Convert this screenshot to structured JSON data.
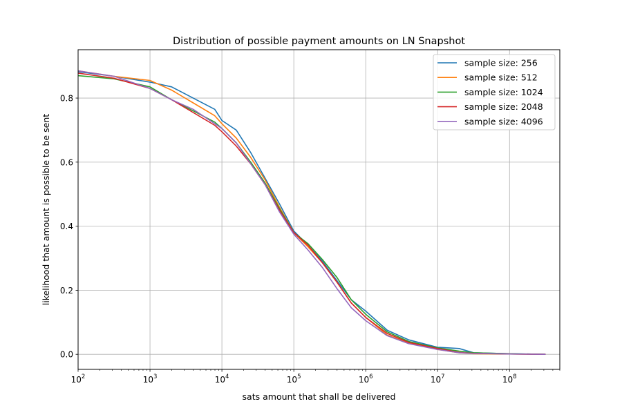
{
  "chart_data": {
    "type": "line",
    "title": "Distribution of possible payment amounts on LN Snapshot",
    "xlabel": "sats amount that shall be delivered",
    "ylabel": "likelihood that amount is possible to be sent",
    "xscale": "log",
    "xlim": [
      100,
      500000000
    ],
    "ylim": [
      -0.047,
      0.951
    ],
    "grid": true,
    "legend_position": "top-right",
    "x_tick_labels": [
      {
        "value": 100,
        "base": "10",
        "exp": "2"
      },
      {
        "value": 1000,
        "base": "10",
        "exp": "3"
      },
      {
        "value": 10000,
        "base": "10",
        "exp": "4"
      },
      {
        "value": 100000,
        "base": "10",
        "exp": "5"
      },
      {
        "value": 1000000,
        "base": "10",
        "exp": "6"
      },
      {
        "value": 10000000,
        "base": "10",
        "exp": "7"
      },
      {
        "value": 100000000,
        "base": "10",
        "exp": "8"
      }
    ],
    "y_ticks": [
      0.0,
      0.2,
      0.4,
      0.6,
      0.8
    ],
    "y_tick_labels": [
      "0.0",
      "0.2",
      "0.4",
      "0.6",
      "0.8"
    ],
    "x": [
      100,
      316,
      1000,
      1995,
      3981,
      7943,
      10000,
      15849,
      25119,
      39811,
      63096,
      100000,
      158489,
      251189,
      398107,
      630957,
      1000000,
      1995262,
      3981072,
      10000000,
      19952623,
      31622777,
      100000000,
      316227766
    ],
    "series": [
      {
        "name": "sample size: 256",
        "color": "#1f77b4",
        "values": [
          0.882,
          0.868,
          0.85,
          0.835,
          0.8,
          0.765,
          0.73,
          0.7,
          0.63,
          0.55,
          0.47,
          0.385,
          0.34,
          0.29,
          0.23,
          0.17,
          0.135,
          0.075,
          0.045,
          0.022,
          0.018,
          0.005,
          0.002,
          0.0
        ]
      },
      {
        "name": "sample size: 512",
        "color": "#ff7f0e",
        "values": [
          0.885,
          0.868,
          0.855,
          0.825,
          0.785,
          0.745,
          0.72,
          0.675,
          0.615,
          0.545,
          0.46,
          0.38,
          0.335,
          0.285,
          0.225,
          0.16,
          0.115,
          0.06,
          0.035,
          0.015,
          0.005,
          0.002,
          0.001,
          0.0
        ]
      },
      {
        "name": "sample size: 1024",
        "color": "#2ca02c",
        "values": [
          0.87,
          0.86,
          0.835,
          0.795,
          0.76,
          0.725,
          0.705,
          0.66,
          0.6,
          0.535,
          0.455,
          0.38,
          0.345,
          0.295,
          0.24,
          0.17,
          0.125,
          0.07,
          0.04,
          0.02,
          0.01,
          0.005,
          0.002,
          0.0
        ]
      },
      {
        "name": "sample size: 2048",
        "color": "#d62728",
        "values": [
          0.878,
          0.862,
          0.83,
          0.795,
          0.755,
          0.715,
          0.695,
          0.65,
          0.595,
          0.53,
          0.45,
          0.38,
          0.34,
          0.285,
          0.225,
          0.16,
          0.115,
          0.065,
          0.037,
          0.018,
          0.006,
          0.003,
          0.001,
          0.0
        ]
      },
      {
        "name": "sample size: 4096",
        "color": "#9467bd",
        "values": [
          0.885,
          0.868,
          0.83,
          0.795,
          0.765,
          0.72,
          0.705,
          0.66,
          0.595,
          0.53,
          0.445,
          0.375,
          0.325,
          0.27,
          0.205,
          0.145,
          0.105,
          0.058,
          0.033,
          0.015,
          0.005,
          0.003,
          0.001,
          0.0
        ]
      }
    ]
  }
}
